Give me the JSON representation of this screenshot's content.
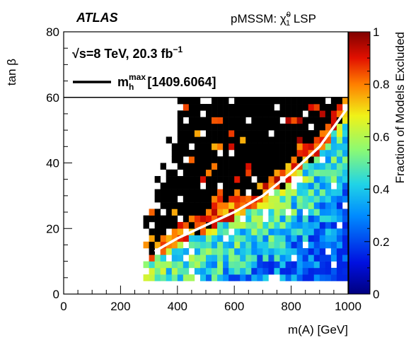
{
  "header": {
    "experiment": "ATLAS",
    "model_label_prefix": "pMSSM: ",
    "model_label_chi": "χ̃",
    "model_label_chi_sup": "0",
    "model_label_chi_sub": "1",
    "model_label_suffix": " LSP"
  },
  "legend": {
    "energy_root": "√",
    "energy_s": "s",
    "energy_text": "=8 TeV, 20.3 fb",
    "energy_exp": "−1",
    "line_label_m": "m",
    "line_label_sup": "max",
    "line_label_sub": "h",
    "line_label_value": " [1409.6064]"
  },
  "chart_data": {
    "type": "heatmap",
    "xlabel": "m(A) [GeV]",
    "ylabel": "tan β",
    "zlabel": "Fraction of  Models Excluded",
    "xlim": [
      0,
      1000
    ],
    "ylim": [
      0,
      80
    ],
    "zlim": [
      0,
      1
    ],
    "xticks": [
      0,
      200,
      400,
      600,
      800,
      1000
    ],
    "yticks": [
      0,
      20,
      40,
      60,
      80
    ],
    "zticks": [
      0,
      0.2,
      0.4,
      0.6,
      0.8,
      1
    ],
    "bin_width_x": 20,
    "bin_width_y": 2,
    "mhmax_line": {
      "x": [
        320,
        400,
        500,
        600,
        700,
        800,
        900,
        1000
      ],
      "y": [
        13,
        17,
        21,
        25,
        30,
        37,
        45,
        57
      ]
    },
    "horizontal_line_y": 60
  },
  "colors": {
    "black_region": "#000000",
    "frame": "#000000",
    "mhmax_line": "#ffffff"
  }
}
